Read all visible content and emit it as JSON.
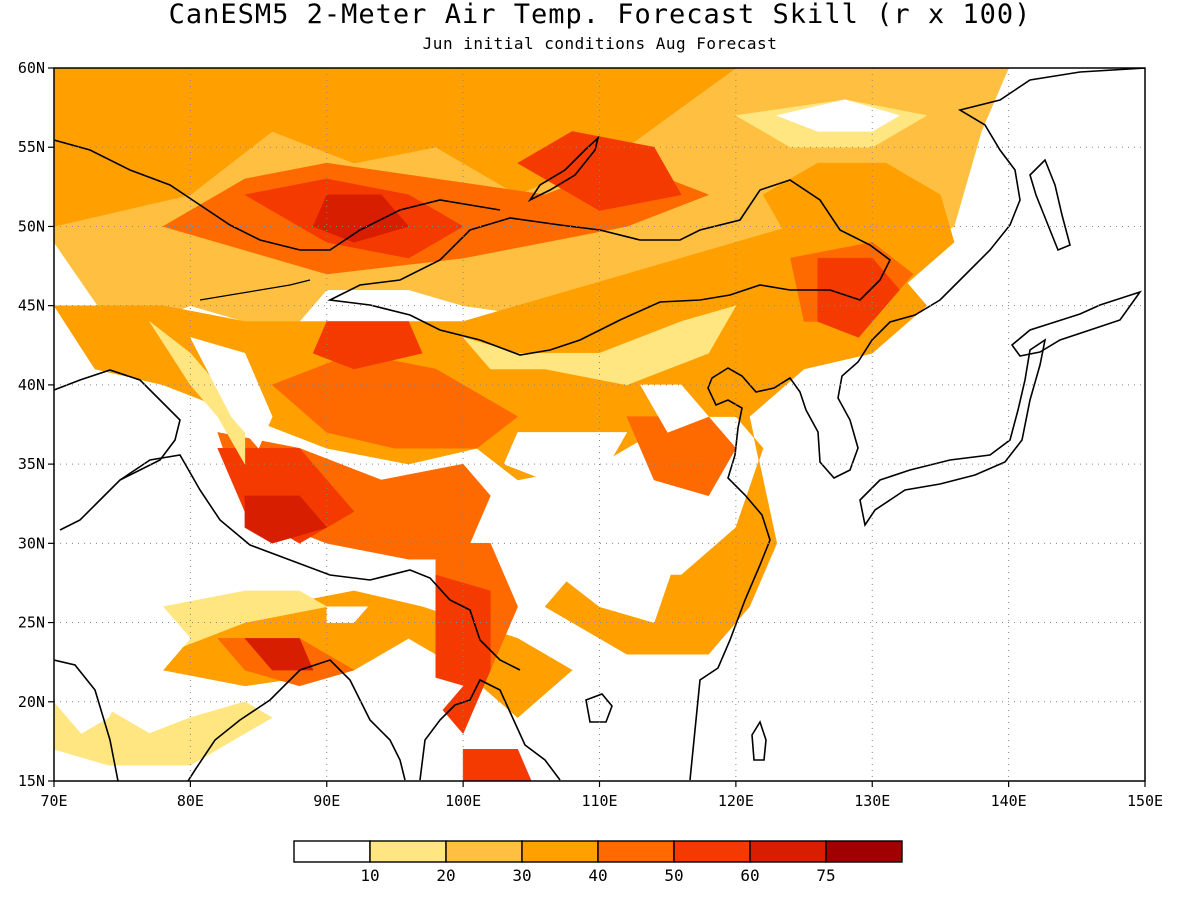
{
  "header": {
    "title": "CanESM5 2-Meter Air Temp. Forecast Skill (r x 100)",
    "subtitle": "Jun initial conditions  Aug Forecast"
  },
  "map": {
    "lon_range": [
      70,
      150
    ],
    "lat_range": [
      15,
      60
    ],
    "x_ticks": [
      "70E",
      "80E",
      "90E",
      "100E",
      "110E",
      "120E",
      "130E",
      "140E",
      "150E"
    ],
    "y_ticks": [
      "15N",
      "20N",
      "25N",
      "30N",
      "35N",
      "40N",
      "45N",
      "50N",
      "55N",
      "60N"
    ],
    "gridlines": "dotted"
  },
  "colorbar": {
    "colors": [
      "#ffffff",
      "#ffe680",
      "#ffbf40",
      "#ffa000",
      "#ff6a00",
      "#f53a00",
      "#d81e00",
      "#a00000"
    ],
    "labels": [
      "10",
      "20",
      "30",
      "40",
      "50",
      "60",
      "75"
    ]
  },
  "field": {
    "regions": [
      {
        "level": 2,
        "pts": [
          [
            70,
            49
          ],
          [
            74,
            44
          ],
          [
            77,
            44
          ],
          [
            80,
            45
          ],
          [
            84,
            44
          ],
          [
            88,
            44
          ],
          [
            90,
            46
          ],
          [
            96,
            46
          ],
          [
            100,
            45
          ],
          [
            108,
            44
          ],
          [
            116,
            44
          ],
          [
            120,
            46
          ],
          [
            124,
            48
          ],
          [
            132,
            48
          ],
          [
            136,
            50
          ],
          [
            138,
            56
          ],
          [
            140,
            60
          ],
          [
            70,
            60
          ]
        ]
      },
      {
        "level": 3,
        "pts": [
          [
            70,
            60
          ],
          [
            70,
            50
          ],
          [
            80,
            52
          ],
          [
            86,
            56
          ],
          [
            92,
            54
          ],
          [
            98,
            55
          ],
          [
            104,
            52
          ],
          [
            112,
            55
          ],
          [
            120,
            60
          ]
        ]
      },
      {
        "level": 3,
        "pts": [
          [
            122,
            52
          ],
          [
            126,
            54
          ],
          [
            131,
            54
          ],
          [
            135,
            52
          ],
          [
            136,
            49
          ],
          [
            132,
            46
          ],
          [
            126,
            46
          ]
        ]
      },
      {
        "level": 3,
        "pts": [
          [
            70,
            45
          ],
          [
            73,
            41
          ],
          [
            78,
            40
          ],
          [
            84,
            38
          ],
          [
            90,
            36
          ],
          [
            96,
            35
          ],
          [
            101,
            36
          ],
          [
            104,
            34
          ],
          [
            110,
            35
          ],
          [
            116,
            38
          ],
          [
            120,
            38
          ],
          [
            122,
            36
          ],
          [
            120,
            31
          ],
          [
            116,
            28
          ],
          [
            108,
            28
          ],
          [
            106,
            26
          ],
          [
            112,
            23
          ],
          [
            118,
            23
          ],
          [
            121,
            26
          ],
          [
            123,
            30
          ],
          [
            121,
            38
          ],
          [
            125,
            41
          ],
          [
            130,
            42
          ],
          [
            134,
            45
          ],
          [
            131,
            48
          ],
          [
            124,
            50
          ],
          [
            116,
            48
          ],
          [
            108,
            46
          ],
          [
            100,
            44
          ],
          [
            92,
            44
          ],
          [
            84,
            44
          ],
          [
            78,
            45
          ]
        ]
      },
      {
        "level": 3,
        "pts": [
          [
            78,
            22
          ],
          [
            84,
            21
          ],
          [
            92,
            22
          ],
          [
            96,
            24
          ],
          [
            100,
            22
          ],
          [
            104,
            19
          ],
          [
            108,
            22
          ],
          [
            104,
            24
          ],
          [
            97,
            26
          ],
          [
            92,
            27
          ],
          [
            86,
            26
          ],
          [
            80,
            25
          ]
        ]
      },
      {
        "level": 4,
        "pts": [
          [
            78,
            50
          ],
          [
            84,
            53
          ],
          [
            90,
            54
          ],
          [
            98,
            53
          ],
          [
            106,
            52
          ],
          [
            112,
            54
          ],
          [
            118,
            52
          ],
          [
            112,
            50
          ],
          [
            100,
            48
          ],
          [
            90,
            47
          ]
        ]
      },
      {
        "level": 4,
        "pts": [
          [
            124,
            48
          ],
          [
            130,
            49
          ],
          [
            133,
            47
          ],
          [
            130,
            44
          ],
          [
            125,
            44
          ]
        ]
      },
      {
        "level": 4,
        "pts": [
          [
            86,
            40
          ],
          [
            92,
            42
          ],
          [
            98,
            41
          ],
          [
            104,
            38
          ],
          [
            101,
            36
          ],
          [
            95,
            36
          ],
          [
            90,
            37
          ]
        ]
      },
      {
        "level": 4,
        "pts": [
          [
            82,
            37
          ],
          [
            88,
            36
          ],
          [
            94,
            34
          ],
          [
            100,
            35
          ],
          [
            102,
            33
          ],
          [
            100,
            29
          ],
          [
            96,
            29
          ],
          [
            90,
            30
          ],
          [
            84,
            32
          ]
        ]
      },
      {
        "level": 4,
        "pts": [
          [
            112,
            38
          ],
          [
            118,
            38
          ],
          [
            120,
            36
          ],
          [
            118,
            33
          ],
          [
            114,
            34
          ]
        ]
      },
      {
        "level": 4,
        "pts": [
          [
            82,
            24
          ],
          [
            88,
            24
          ],
          [
            92,
            22
          ],
          [
            88,
            21
          ],
          [
            84,
            22
          ]
        ]
      },
      {
        "level": 4,
        "pts": [
          [
            98,
            30
          ],
          [
            102,
            30
          ],
          [
            104,
            26
          ],
          [
            102,
            22
          ],
          [
            100,
            18
          ],
          [
            98,
            20
          ],
          [
            98,
            25
          ]
        ]
      },
      {
        "level": 5,
        "pts": [
          [
            84,
            52
          ],
          [
            90,
            53
          ],
          [
            96,
            52
          ],
          [
            100,
            50
          ],
          [
            96,
            48
          ],
          [
            90,
            49
          ]
        ]
      },
      {
        "level": 5,
        "pts": [
          [
            104,
            54
          ],
          [
            108,
            56
          ],
          [
            114,
            55
          ],
          [
            116,
            52
          ],
          [
            110,
            51
          ]
        ]
      },
      {
        "level": 5,
        "pts": [
          [
            126,
            48
          ],
          [
            130,
            48
          ],
          [
            132,
            46
          ],
          [
            129,
            43
          ],
          [
            126,
            44
          ]
        ]
      },
      {
        "level": 5,
        "pts": [
          [
            90,
            44
          ],
          [
            96,
            44
          ],
          [
            97,
            42
          ],
          [
            92,
            41
          ],
          [
            89,
            42
          ]
        ]
      },
      {
        "level": 5,
        "pts": [
          [
            82,
            36
          ],
          [
            88,
            36
          ],
          [
            92,
            32
          ],
          [
            88,
            30
          ],
          [
            84,
            32
          ]
        ]
      },
      {
        "level": 5,
        "pts": [
          [
            98,
            28
          ],
          [
            102,
            27
          ],
          [
            102,
            22
          ],
          [
            100,
            18
          ],
          [
            98,
            20
          ]
        ]
      },
      {
        "level": 5,
        "pts": [
          [
            100,
            17
          ],
          [
            104,
            17
          ],
          [
            105,
            15
          ],
          [
            100,
            15
          ]
        ]
      },
      {
        "level": 6,
        "pts": [
          [
            90,
            52
          ],
          [
            94,
            52
          ],
          [
            96,
            50
          ],
          [
            92,
            49
          ],
          [
            89,
            50
          ]
        ]
      },
      {
        "level": 6,
        "pts": [
          [
            84,
            33
          ],
          [
            88,
            33
          ],
          [
            90,
            31
          ],
          [
            86,
            30
          ],
          [
            84,
            31
          ]
        ]
      },
      {
        "level": 6,
        "pts": [
          [
            84,
            24
          ],
          [
            88,
            24
          ],
          [
            89,
            22
          ],
          [
            86,
            22
          ]
        ]
      },
      {
        "level": 1,
        "pts": [
          [
            77,
            44
          ],
          [
            80,
            42
          ],
          [
            84,
            38
          ],
          [
            84,
            35
          ],
          [
            82,
            38
          ],
          [
            80,
            40
          ]
        ]
      },
      {
        "level": 1,
        "pts": [
          [
            72,
            25
          ],
          [
            78,
            26
          ],
          [
            84,
            27
          ],
          [
            88,
            27
          ],
          [
            90,
            26
          ],
          [
            84,
            25
          ],
          [
            78,
            23
          ],
          [
            74,
            22
          ]
        ]
      },
      {
        "level": 1,
        "pts": [
          [
            70,
            22
          ],
          [
            73,
            20
          ],
          [
            77,
            18
          ],
          [
            80,
            19
          ],
          [
            84,
            20
          ],
          [
            86,
            19
          ],
          [
            80,
            16
          ],
          [
            74,
            16
          ],
          [
            70,
            17
          ]
        ]
      },
      {
        "level": 1,
        "pts": [
          [
            100,
            43
          ],
          [
            104,
            42
          ],
          [
            110,
            42
          ],
          [
            116,
            44
          ],
          [
            120,
            45
          ],
          [
            118,
            42
          ],
          [
            112,
            40
          ],
          [
            106,
            41
          ],
          [
            102,
            41
          ]
        ]
      },
      {
        "level": 1,
        "pts": [
          [
            120,
            57
          ],
          [
            128,
            58
          ],
          [
            134,
            57
          ],
          [
            130,
            55
          ],
          [
            124,
            55
          ]
        ]
      },
      {
        "level": 0,
        "pts": [
          [
            70,
            34
          ],
          [
            73,
            28
          ],
          [
            78,
            26
          ],
          [
            80,
            24
          ],
          [
            78,
            22
          ],
          [
            76,
            22
          ],
          [
            74,
            19
          ],
          [
            72,
            18
          ],
          [
            70,
            20
          ]
        ]
      },
      {
        "level": 0,
        "pts": [
          [
            80,
            43
          ],
          [
            84,
            42
          ],
          [
            86,
            38
          ],
          [
            85,
            36
          ],
          [
            83,
            38
          ]
        ]
      },
      {
        "level": 0,
        "pts": [
          [
            104,
            37
          ],
          [
            108,
            37
          ],
          [
            112,
            37
          ],
          [
            110,
            34
          ],
          [
            106,
            34
          ],
          [
            103,
            35
          ]
        ]
      },
      {
        "level": 0,
        "pts": [
          [
            106,
            31
          ],
          [
            112,
            31
          ],
          [
            116,
            30
          ],
          [
            114,
            25
          ],
          [
            110,
            26
          ],
          [
            107,
            28
          ]
        ]
      },
      {
        "level": 0,
        "pts": [
          [
            123,
            57
          ],
          [
            128,
            58
          ],
          [
            132,
            57
          ],
          [
            130,
            56
          ],
          [
            126,
            56
          ]
        ]
      },
      {
        "level": 0,
        "pts": [
          [
            113,
            40
          ],
          [
            116,
            40
          ],
          [
            118,
            38
          ],
          [
            115,
            37
          ]
        ]
      },
      {
        "level": 0,
        "pts": [
          [
            96,
            22
          ],
          [
            100,
            21
          ],
          [
            98,
            19
          ],
          [
            96,
            19
          ]
        ]
      },
      {
        "level": 0,
        "pts": [
          [
            90,
            26
          ],
          [
            93,
            26
          ],
          [
            92,
            25
          ],
          [
            90,
            25
          ]
        ]
      }
    ]
  }
}
